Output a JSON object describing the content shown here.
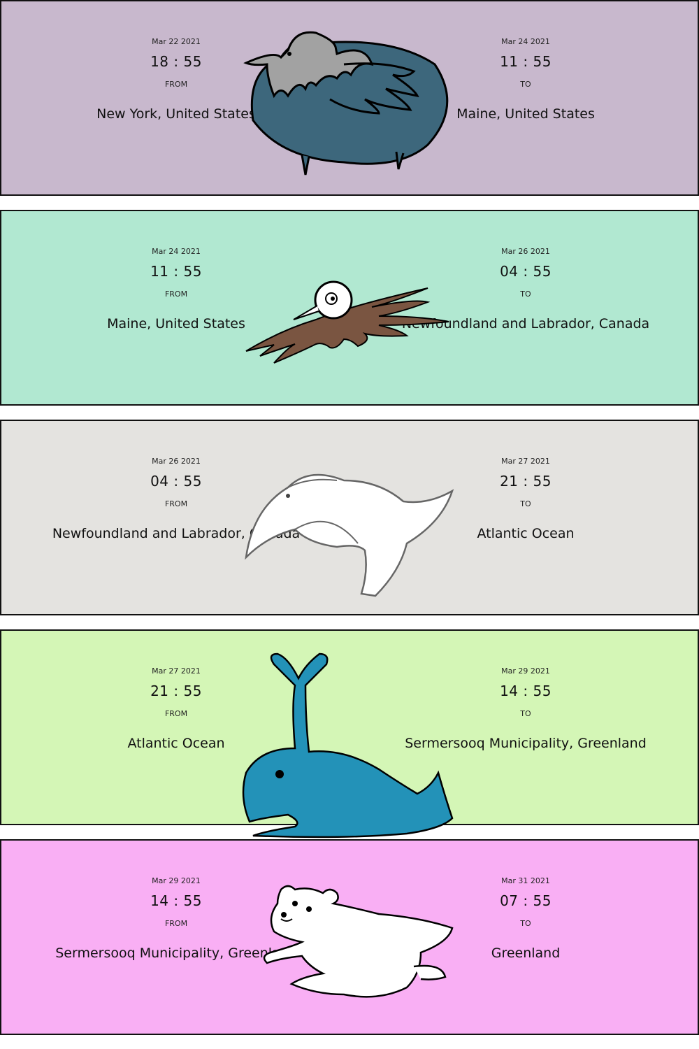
{
  "legs": [
    {
      "color": "#c8b8cd",
      "from": {
        "date": "Mar 22 2021",
        "time": "18 : 55",
        "label": "FROM",
        "place": "New York, United States"
      },
      "to": {
        "date": "Mar 24 2021",
        "time": "11 : 55",
        "label": "TO",
        "place": "Maine, United States"
      },
      "animal": "pigeon-illustration"
    },
    {
      "color": "#b1e8d1",
      "from": {
        "date": "Mar 24 2021",
        "time": "11 : 55",
        "label": "FROM",
        "place": "Maine, United States"
      },
      "to": {
        "date": "Mar 26 2021",
        "time": "04 : 55",
        "label": "TO",
        "place": "Newfoundland and Labrador, Canada"
      },
      "animal": "kiwi-bird-illustration"
    },
    {
      "color": "#e4e3e0",
      "from": {
        "date": "Mar 26 2021",
        "time": "04 : 55",
        "label": "FROM",
        "place": "Newfoundland and Labrador, Canada"
      },
      "to": {
        "date": "Mar 27 2021",
        "time": "21 : 55",
        "label": "TO",
        "place": "Atlantic Ocean"
      },
      "animal": "seagull-illustration"
    },
    {
      "color": "#d4f6b6",
      "from": {
        "date": "Mar 27 2021",
        "time": "21 : 55",
        "label": "FROM",
        "place": "Atlantic Ocean"
      },
      "to": {
        "date": "Mar 29 2021",
        "time": "14 : 55",
        "label": "TO",
        "place": "Sermersooq Municipality, Greenland"
      },
      "animal": "whale-illustration"
    },
    {
      "color": "#f9aff4",
      "from": {
        "date": "Mar 29 2021",
        "time": "14 : 55",
        "label": "FROM",
        "place": "Sermersooq Municipality, Greenland"
      },
      "to": {
        "date": "Mar 31 2021",
        "time": "07 : 55",
        "label": "TO",
        "place": "Greenland"
      },
      "animal": "polar-bear-illustration"
    }
  ]
}
